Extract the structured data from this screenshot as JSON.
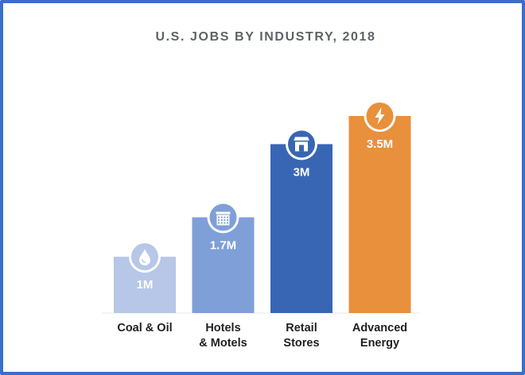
{
  "chart_data": {
    "type": "bar",
    "title": "U.S. JOBS BY INDUSTRY, 2018",
    "categories": [
      [
        "Coal & Oil"
      ],
      [
        "Hotels",
        "& Motels"
      ],
      [
        "Retail",
        "Stores"
      ],
      [
        "Advanced",
        "Energy"
      ]
    ],
    "values": [
      1.0,
      1.7,
      3.0,
      3.5
    ],
    "value_labels": [
      "1M",
      "1.7M",
      "3M",
      "3.5M"
    ],
    "icons": [
      "oil-drop-icon",
      "hotel-icon",
      "store-icon",
      "lightning-icon"
    ],
    "colors": [
      "#b7c7e8",
      "#7f9fd8",
      "#3866b4",
      "#e8903c"
    ],
    "ylim": [
      0,
      3.5
    ],
    "grid": false,
    "legend": "none"
  }
}
